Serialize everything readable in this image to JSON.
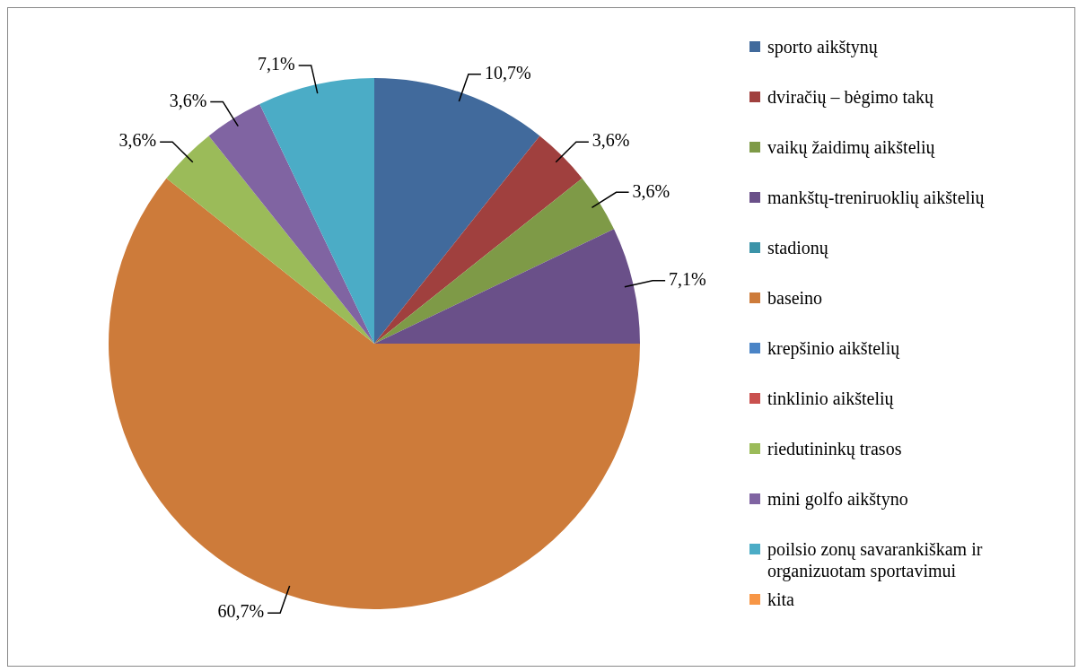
{
  "chart_data": {
    "type": "pie",
    "legend": "right",
    "categories": [
      "sporto aikštynų",
      "dviračių – bėgimo takų",
      "vaikų žaidimų aikštelių",
      "mankštų-treniruoklių aikštelių",
      "stadionų",
      "baseino",
      "krepšinio aikštelių",
      "tinklinio aikštelių",
      "riedutininkų trasos",
      "mini golfo aikštyno",
      "poilsio zonų savarankiškam ir organizuotam sportavimui",
      "kita"
    ],
    "values": [
      10.7,
      3.6,
      3.6,
      7.1,
      0,
      60.7,
      0,
      0,
      3.6,
      3.6,
      7.1,
      0
    ],
    "value_labels": [
      "10,7%",
      "3,6%",
      "3,6%",
      "7,1%",
      null,
      "60,7%",
      null,
      null,
      "3,6%",
      "3,6%",
      "7,1%",
      null
    ],
    "colors": [
      "#416a9c",
      "#a0403e",
      "#7e9a47",
      "#6a5089",
      "#3b93a8",
      "#cd7b3a",
      "#4a84c6",
      "#c9504e",
      "#9bbb59",
      "#8064a2",
      "#4bacc6",
      "#f79646"
    ]
  }
}
